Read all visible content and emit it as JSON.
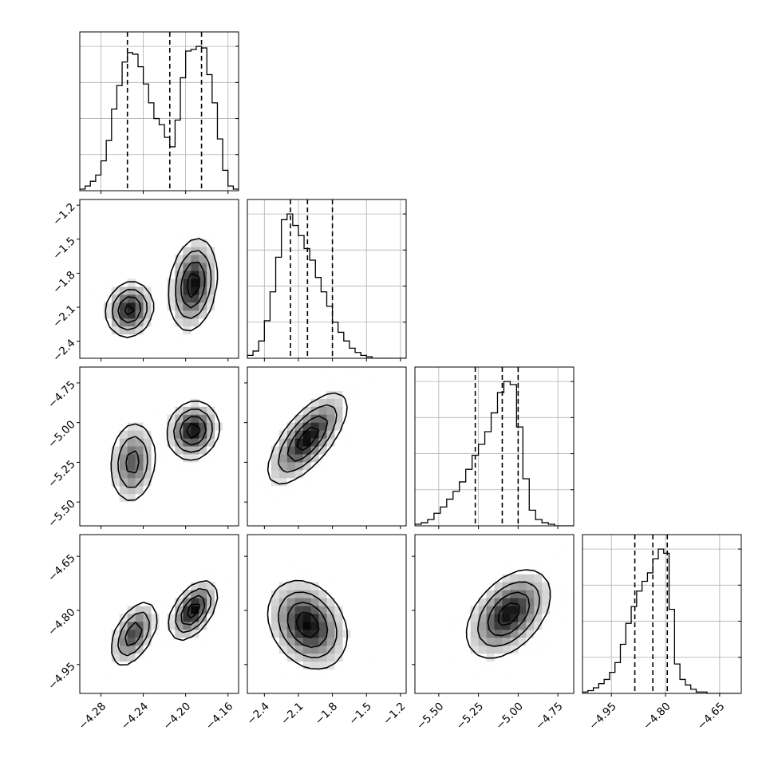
{
  "chart_data": {
    "type": "corner",
    "parameters": [
      {
        "range": [
          -4.3,
          -4.15
        ],
        "ticks": [
          -4.28,
          -4.24,
          -4.2,
          -4.16
        ],
        "tick_labels": [
          "−4.28",
          "−4.24",
          "−4.20",
          "−4.16"
        ],
        "quantiles": [
          -4.255,
          -4.215,
          -4.185
        ]
      },
      {
        "range": [
          -2.55,
          -1.15
        ],
        "ticks": [
          -2.4,
          -2.1,
          -1.8,
          -1.5,
          -1.2
        ],
        "tick_labels": [
          "−2.4",
          "−2.1",
          "−1.8",
          "−1.5",
          "−1.2"
        ],
        "quantiles": [
          -2.17,
          -2.02,
          -1.8
        ]
      },
      {
        "range": [
          -5.65,
          -4.65
        ],
        "ticks": [
          -5.5,
          -5.25,
          -5.0,
          -4.75
        ],
        "tick_labels": [
          "−5.50",
          "−5.25",
          "−5.00",
          "−4.75"
        ],
        "quantiles": [
          -5.27,
          -5.1,
          -5.0
        ]
      },
      {
        "range": [
          -5.03,
          -4.59
        ],
        "ticks": [
          -4.95,
          -4.8,
          -4.65
        ],
        "tick_labels": [
          "−4.95",
          "−4.80",
          "−4.65"
        ],
        "quantiles": [
          -4.885,
          -4.835,
          -4.795
        ]
      }
    ],
    "histograms": [
      {
        "edges": [
          -4.3,
          -4.295,
          -4.29,
          -4.285,
          -4.28,
          -4.275,
          -4.27,
          -4.265,
          -4.26,
          -4.255,
          -4.25,
          -4.245,
          -4.24,
          -4.235,
          -4.23,
          -4.225,
          -4.22,
          -4.215,
          -4.21,
          -4.205,
          -4.2,
          -4.195,
          -4.19,
          -4.185,
          -4.18,
          -4.175,
          -4.17,
          -4.165,
          -4.16,
          -4.155,
          -4.15
        ],
        "counts": [
          1,
          3,
          6,
          10,
          19,
          32,
          52,
          67,
          82,
          88,
          87,
          79,
          68,
          56,
          46,
          42,
          34,
          28,
          45,
          72,
          89,
          90,
          92,
          91,
          74,
          56,
          33,
          13,
          3,
          1
        ]
      },
      {
        "edges": [
          -2.55,
          -2.5,
          -2.45,
          -2.4,
          -2.35,
          -2.3,
          -2.25,
          -2.2,
          -2.15,
          -2.1,
          -2.05,
          -2.0,
          -1.95,
          -1.9,
          -1.85,
          -1.8,
          -1.75,
          -1.7,
          -1.65,
          -1.6,
          -1.55,
          -1.5,
          -1.45,
          -1.4,
          -1.35,
          -1.3,
          -1.25,
          -1.2,
          -1.15
        ],
        "counts": [
          2,
          5,
          12,
          26,
          46,
          70,
          96,
          100,
          92,
          85,
          76,
          68,
          56,
          46,
          36,
          25,
          18,
          12,
          7,
          4,
          2,
          1,
          0,
          0,
          0,
          0,
          0,
          0
        ]
      },
      {
        "edges": [
          -5.65,
          -5.61,
          -5.57,
          -5.53,
          -5.49,
          -5.45,
          -5.41,
          -5.37,
          -5.33,
          -5.29,
          -5.25,
          -5.21,
          -5.17,
          -5.13,
          -5.09,
          -5.05,
          -5.01,
          -4.97,
          -4.93,
          -4.89,
          -4.85,
          -4.81,
          -4.77,
          -4.73,
          -4.69,
          -4.65
        ],
        "counts": [
          1,
          2,
          4,
          8,
          12,
          17,
          22,
          28,
          36,
          45,
          52,
          60,
          72,
          85,
          92,
          90,
          63,
          30,
          10,
          4,
          2,
          1,
          0,
          0,
          0
        ]
      },
      {
        "edges": [
          -5.03,
          -5.015,
          -5.0,
          -4.985,
          -4.97,
          -4.955,
          -4.94,
          -4.925,
          -4.91,
          -4.895,
          -4.88,
          -4.865,
          -4.85,
          -4.835,
          -4.82,
          -4.805,
          -4.79,
          -4.775,
          -4.76,
          -4.745,
          -4.73,
          -4.715,
          -4.7,
          -4.685,
          -4.67,
          -4.655,
          -4.64,
          -4.625,
          -4.61,
          -4.595
        ],
        "counts": [
          1,
          2,
          4,
          7,
          10,
          15,
          22,
          35,
          50,
          62,
          73,
          80,
          86,
          96,
          103,
          100,
          60,
          21,
          10,
          6,
          3,
          1,
          1,
          0,
          0,
          0,
          0,
          0,
          0
        ]
      }
    ],
    "pair_modes": {
      "1_0": [
        {
          "x": -4.253,
          "y": -2.12,
          "sx": 0.011,
          "sy": 0.12,
          "w": 1.0,
          "r": 0.1
        },
        {
          "x": -4.193,
          "y": -1.9,
          "sx": 0.011,
          "sy": 0.2,
          "w": 1.05,
          "r": 0.2
        }
      ],
      "2_0": [
        {
          "x": -4.25,
          "y": -5.25,
          "sx": 0.011,
          "sy": 0.13,
          "w": 0.85,
          "r": 0.1
        },
        {
          "x": -4.193,
          "y": -5.05,
          "sx": 0.012,
          "sy": 0.09,
          "w": 1.2,
          "r": 0.1
        }
      ],
      "2_1": [
        {
          "x": -2.02,
          "y": -5.1,
          "sx": 0.17,
          "sy": 0.14,
          "w": 1.0,
          "r": 0.7
        }
      ],
      "3_0": [
        {
          "x": -4.249,
          "y": -4.865,
          "sx": 0.011,
          "sy": 0.045,
          "w": 0.9,
          "r": 0.5
        },
        {
          "x": -4.193,
          "y": -4.8,
          "sx": 0.011,
          "sy": 0.04,
          "w": 1.15,
          "r": 0.5
        }
      ],
      "3_1": [
        {
          "x": -2.02,
          "y": -4.84,
          "sx": 0.17,
          "sy": 0.06,
          "w": 1.0,
          "r": -0.25
        }
      ],
      "3_2": [
        {
          "x": -5.06,
          "y": -4.81,
          "sx": 0.13,
          "sy": 0.06,
          "w": 1.0,
          "r": 0.45
        }
      ]
    }
  }
}
